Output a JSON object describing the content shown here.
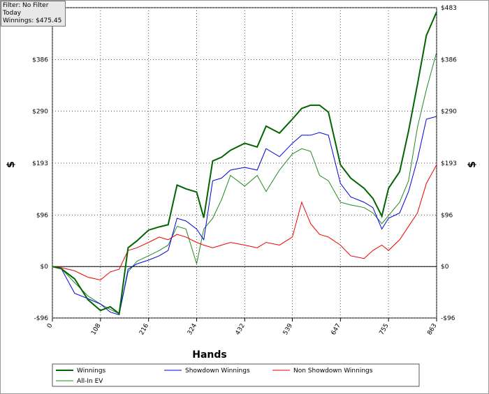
{
  "info": {
    "filter": "Filter: No Filter",
    "period": "Today",
    "winnings": "Winnings: $475.45"
  },
  "chart_data": {
    "type": "line",
    "xlabel": "Hands",
    "ylabel": "$",
    "xlim": [
      0,
      863
    ],
    "xticks": [
      0,
      108,
      216,
      324,
      432,
      539,
      647,
      755,
      863
    ],
    "ylim": [
      -96,
      483
    ],
    "yticks": [
      {
        "value": -96,
        "label": "-$96"
      },
      {
        "value": 0,
        "label": "$0"
      },
      {
        "value": 96,
        "label": "$96"
      },
      {
        "value": 193,
        "label": "$193"
      },
      {
        "value": 290,
        "label": "$290"
      },
      {
        "value": 386,
        "label": "$386"
      },
      {
        "value": 483,
        "label": "$483"
      }
    ],
    "grid": true,
    "x": [
      0,
      20,
      50,
      80,
      108,
      130,
      150,
      170,
      190,
      216,
      240,
      260,
      280,
      300,
      324,
      340,
      360,
      380,
      400,
      432,
      460,
      480,
      510,
      539,
      560,
      580,
      600,
      620,
      647,
      670,
      700,
      720,
      740,
      755,
      780,
      800,
      820,
      840,
      863
    ],
    "series": [
      {
        "name": "Winnings",
        "color": "#006400",
        "width": 2,
        "values": [
          0,
          -4,
          -23,
          -62,
          -82,
          -75,
          -88,
          35,
          48,
          68,
          74,
          78,
          152,
          145,
          139,
          91,
          197,
          204,
          217,
          230,
          223,
          262,
          249,
          275,
          295,
          301,
          301,
          288,
          190,
          165,
          146,
          127,
          94,
          146,
          177,
          253,
          340,
          431,
          475
        ]
      },
      {
        "name": "Showdown Winnings",
        "color": "#0000dd",
        "width": 1,
        "values": [
          0,
          -4,
          -50,
          -60,
          -70,
          -85,
          -90,
          -5,
          5,
          12,
          20,
          30,
          90,
          85,
          70,
          50,
          160,
          165,
          180,
          185,
          180,
          220,
          205,
          230,
          245,
          245,
          250,
          245,
          155,
          130,
          120,
          110,
          70,
          90,
          100,
          140,
          200,
          275,
          280
        ]
      },
      {
        "name": "Non Showdown Winnings",
        "color": "#ee0000",
        "width": 1,
        "values": [
          0,
          -2,
          -8,
          -20,
          -25,
          -10,
          -5,
          30,
          35,
          45,
          55,
          50,
          60,
          55,
          45,
          40,
          35,
          40,
          45,
          40,
          35,
          45,
          40,
          55,
          120,
          80,
          60,
          55,
          40,
          20,
          15,
          30,
          40,
          30,
          50,
          75,
          100,
          155,
          190
        ]
      },
      {
        "name": "All-In EV",
        "color": "#228b22",
        "width": 1,
        "values": [
          0,
          -4,
          -30,
          -55,
          -70,
          -80,
          -88,
          -10,
          10,
          20,
          30,
          40,
          75,
          70,
          5,
          70,
          90,
          125,
          170,
          150,
          170,
          140,
          180,
          210,
          220,
          215,
          170,
          160,
          120,
          115,
          110,
          100,
          80,
          95,
          120,
          160,
          260,
          330,
          400
        ]
      }
    ]
  }
}
